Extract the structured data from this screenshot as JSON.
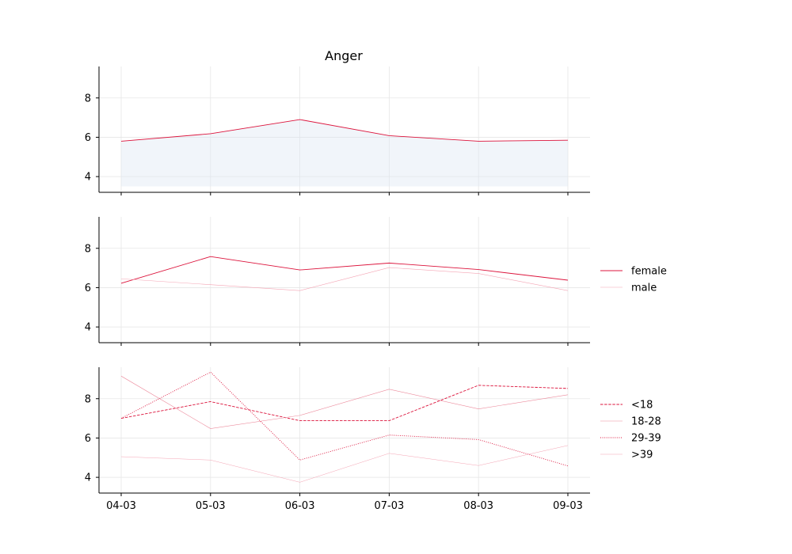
{
  "chart_data": [
    {
      "type": "area",
      "title": "Anger",
      "categories": [
        "04-03",
        "05-03",
        "06-03",
        "07-03",
        "08-03",
        "09-03"
      ],
      "ylim": [
        3.2,
        9.6
      ],
      "yticks": [
        4,
        6,
        8
      ],
      "grid": true,
      "series": [
        {
          "values": [
            5.8,
            6.18,
            6.9,
            6.08,
            5.8,
            5.85
          ],
          "color": "#dc143c",
          "dash": "solid",
          "width": 0.9,
          "opacity": 1,
          "fill_to": 3.5,
          "fill_color": "#dbe6f3",
          "fill_opacity": 0.4
        }
      ]
    },
    {
      "type": "line",
      "categories": [
        "04-03",
        "05-03",
        "06-03",
        "07-03",
        "08-03",
        "09-03"
      ],
      "ylim": [
        3.2,
        9.6
      ],
      "yticks": [
        4,
        6,
        8
      ],
      "grid": true,
      "legend": "right",
      "series": [
        {
          "name": "female",
          "values": [
            6.22,
            7.58,
            6.9,
            7.25,
            6.92,
            6.38
          ],
          "color": "#dc143c",
          "dash": "solid",
          "width": 0.9,
          "opacity": 1
        },
        {
          "name": "male",
          "values": [
            6.45,
            6.15,
            5.85,
            7.02,
            6.72,
            5.85
          ],
          "color": "#f4a4b4",
          "dash": "solid",
          "width": 0.6,
          "opacity": 1
        }
      ]
    },
    {
      "type": "line",
      "categories": [
        "04-03",
        "05-03",
        "06-03",
        "07-03",
        "08-03",
        "09-03"
      ],
      "ylim": [
        3.2,
        9.6
      ],
      "yticks": [
        4,
        6,
        8
      ],
      "grid": true,
      "legend": "right",
      "series": [
        {
          "name": "<18",
          "values": [
            7.0,
            7.85,
            6.88,
            6.88,
            8.68,
            8.52
          ],
          "color": "#dc143c",
          "dash": "dashed",
          "width": 0.9,
          "opacity": 1
        },
        {
          "name": "18-28",
          "values": [
            9.15,
            6.48,
            7.15,
            8.48,
            7.48,
            8.2
          ],
          "color": "#ec8a9c",
          "dash": "solid",
          "width": 0.6,
          "opacity": 1
        },
        {
          "name": "29-39",
          "values": [
            7.0,
            9.35,
            4.88,
            6.15,
            5.92,
            4.58
          ],
          "color": "#dc143c",
          "dash": "dotted",
          "width": 0.9,
          "opacity": 1
        },
        {
          "name": ">39",
          "values": [
            5.05,
            4.88,
            3.75,
            5.22,
            4.6,
            5.62
          ],
          "color": "#f4a4b4",
          "dash": "solid",
          "width": 0.5,
          "opacity": 1
        }
      ]
    }
  ]
}
